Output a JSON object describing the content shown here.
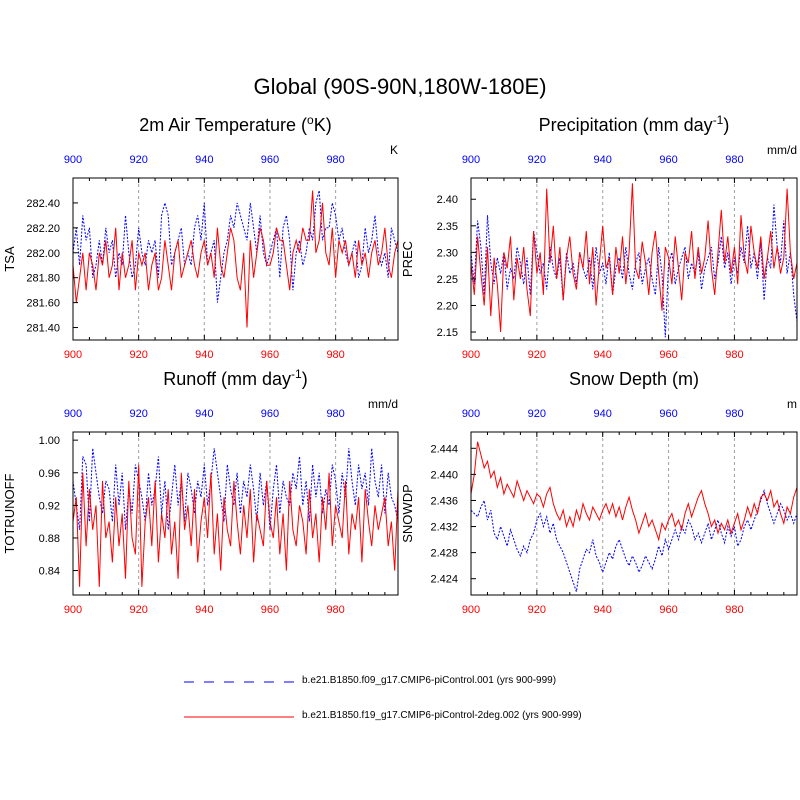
{
  "figure_title": "Global (90S-90N,180W-180E)",
  "colors": {
    "case1": "#0000ff",
    "case2": "#ff0000",
    "grid": "#a0a0a0",
    "axis": "#000000"
  },
  "legend": {
    "case1": "b.e21.B1850.f09_g17.CMIP6-piControl.001 (yrs 900-999)",
    "case2": "b.e21.B1850.f19_g17.CMIP6-piControl-2deg.002 (yrs 900-999)"
  },
  "chart_data": [
    {
      "type": "line",
      "title": "2m Air Temperature (",
      "title_sup": "o",
      "title_tail": "K)",
      "units": "K",
      "ylabel": "TSA",
      "xlim": [
        900,
        999
      ],
      "ylim": [
        281.3,
        282.6
      ],
      "xticks": [
        900,
        920,
        940,
        960,
        980
      ],
      "xtick_labels": [
        "900",
        "920",
        "940",
        "960",
        "980"
      ],
      "yticks": [
        281.4,
        281.6,
        281.8,
        282.0,
        282.2,
        282.4
      ],
      "ytick_labels": [
        "281.40",
        "281.60",
        "281.80",
        "282.00",
        "282.20",
        "282.40"
      ],
      "series": [
        {
          "name": "case1",
          "x_start": 900,
          "values": [
            282.0,
            282.2,
            281.9,
            282.3,
            282.1,
            282.2,
            281.8,
            281.9,
            282.1,
            281.9,
            282.2,
            282.0,
            282.1,
            281.8,
            282.0,
            281.9,
            282.3,
            282.0,
            281.8,
            281.9,
            282.2,
            282.0,
            281.9,
            282.1,
            282.0,
            282.1,
            281.8,
            282.3,
            282.4,
            282.3,
            281.9,
            282.0,
            282.1,
            282.2,
            281.9,
            282.0,
            281.9,
            282.2,
            282.3,
            282.1,
            282.4,
            281.9,
            282.0,
            282.1,
            281.6,
            281.8,
            282.0,
            282.1,
            282.3,
            282.2,
            282.4,
            282.3,
            282.2,
            282.1,
            282.4,
            282.2,
            282.0,
            282.3,
            282.0,
            281.9,
            282.0,
            282.1,
            282.2,
            281.8,
            282.2,
            282.3,
            282.1,
            281.7,
            282.0,
            282.1,
            281.9,
            282.0,
            282.2,
            282.1,
            282.4,
            282.5,
            282.1,
            282.2,
            282.2,
            282.4,
            282.3,
            282.1,
            282.2,
            282.0,
            281.9,
            282.0,
            282.1,
            281.8,
            281.9,
            282.2,
            282.0,
            282.1,
            282.3,
            282.0,
            281.9,
            282.0,
            281.8,
            282.2,
            282.1,
            282.0
          ]
        },
        {
          "name": "case2",
          "x_start": 900,
          "values": [
            281.9,
            281.6,
            281.8,
            282.0,
            281.7,
            282.0,
            281.9,
            281.7,
            282.0,
            281.9,
            282.1,
            281.8,
            281.9,
            282.2,
            281.7,
            282.0,
            281.8,
            281.9,
            282.1,
            281.7,
            282.0,
            281.9,
            282.0,
            281.7,
            281.9,
            282.0,
            281.7,
            281.8,
            282.1,
            281.9,
            281.7,
            282.0,
            282.1,
            281.8,
            281.9,
            282.0,
            282.1,
            281.9,
            281.8,
            282.0,
            282.1,
            281.9,
            282.0,
            281.8,
            282.2,
            281.9,
            281.8,
            282.0,
            282.2,
            282.1,
            281.8,
            281.7,
            282.0,
            281.4,
            282.1,
            281.8,
            282.0,
            282.2,
            282.1,
            281.9,
            281.9,
            282.0,
            282.2,
            282.1,
            282.1,
            281.9,
            281.7,
            282.0,
            282.1,
            282.0,
            282.2,
            282.1,
            282.1,
            282.5,
            282.0,
            282.1,
            282.4,
            282.0,
            281.9,
            282.2,
            281.8,
            282.1,
            282.0,
            282.1,
            281.9,
            282.0,
            281.8,
            282.1,
            281.9,
            282.0,
            281.8,
            282.0,
            282.1,
            281.9,
            282.0,
            282.2,
            281.9,
            281.8,
            282.0,
            282.1
          ]
        }
      ]
    },
    {
      "type": "line",
      "title": "Precipitation (mm day",
      "title_sup": "-1",
      "title_tail": ")",
      "units": "mm/d",
      "ylabel": "PREC",
      "xlim": [
        900,
        999
      ],
      "ylim": [
        2.135,
        2.44
      ],
      "xticks": [
        900,
        920,
        940,
        960,
        980
      ],
      "xtick_labels": [
        "900",
        "920",
        "940",
        "960",
        "980"
      ],
      "yticks": [
        2.15,
        2.2,
        2.25,
        2.3,
        2.35,
        2.4
      ],
      "ytick_labels": [
        "2.15",
        "2.20",
        "2.25",
        "2.30",
        "2.35",
        "2.40"
      ],
      "series": [
        {
          "name": "case1",
          "x_start": 900,
          "values": [
            2.3,
            2.24,
            2.36,
            2.31,
            2.22,
            2.37,
            2.28,
            2.24,
            2.29,
            2.26,
            2.3,
            2.23,
            2.27,
            2.25,
            2.31,
            2.28,
            2.24,
            2.29,
            2.22,
            2.34,
            2.3,
            2.26,
            2.28,
            2.23,
            2.31,
            2.27,
            2.25,
            2.29,
            2.21,
            2.3,
            2.26,
            2.28,
            2.24,
            2.3,
            2.27,
            2.25,
            2.29,
            2.23,
            2.31,
            2.26,
            2.28,
            2.24,
            2.3,
            2.22,
            2.27,
            2.29,
            2.25,
            2.31,
            2.26,
            2.23,
            2.28,
            2.3,
            2.24,
            2.27,
            2.29,
            2.25,
            2.22,
            2.31,
            2.26,
            2.14,
            2.28,
            2.3,
            2.24,
            2.27,
            2.29,
            2.31,
            2.25,
            2.28,
            2.26,
            2.3,
            2.23,
            2.27,
            2.29,
            2.31,
            2.25,
            2.28,
            2.33,
            2.27,
            2.3,
            2.24,
            2.29,
            2.26,
            2.31,
            2.28,
            2.35,
            2.27,
            2.3,
            2.25,
            2.32,
            2.21,
            2.29,
            2.27,
            2.39,
            2.31,
            2.28,
            2.36,
            2.26,
            2.3,
            2.22,
            2.17
          ]
        },
        {
          "name": "case2",
          "x_start": 900,
          "values": [
            2.28,
            2.22,
            2.33,
            2.26,
            2.2,
            2.31,
            2.18,
            2.29,
            2.24,
            2.15,
            2.3,
            2.27,
            2.33,
            2.21,
            2.29,
            2.25,
            2.31,
            2.23,
            2.18,
            2.34,
            2.26,
            2.3,
            2.22,
            2.42,
            2.28,
            2.35,
            2.25,
            2.31,
            2.21,
            2.29,
            2.33,
            2.26,
            2.23,
            2.3,
            2.27,
            2.34,
            2.24,
            2.31,
            2.2,
            2.28,
            2.35,
            2.27,
            2.29,
            2.22,
            2.31,
            2.26,
            2.33,
            2.24,
            2.3,
            2.43,
            2.27,
            2.25,
            2.32,
            2.28,
            2.22,
            2.3,
            2.34,
            2.26,
            2.19,
            2.31,
            2.29,
            2.24,
            2.33,
            2.27,
            2.21,
            2.3,
            2.28,
            2.34,
            2.25,
            2.31,
            2.26,
            2.29,
            2.36,
            2.27,
            2.22,
            2.3,
            2.38,
            2.28,
            2.33,
            2.26,
            2.31,
            2.24,
            2.37,
            2.29,
            2.26,
            2.35,
            2.3,
            2.27,
            2.33,
            2.25,
            2.29,
            2.34,
            2.27,
            2.31,
            2.26,
            2.29,
            2.42,
            2.3,
            2.25,
            2.28
          ]
        }
      ]
    },
    {
      "type": "line",
      "title": "Runoff (mm day",
      "title_sup": "-1",
      "title_tail": ")",
      "units": "mm/d",
      "ylabel": "TOTRUNOFF",
      "xlim": [
        900,
        999
      ],
      "ylim": [
        0.81,
        1.01
      ],
      "xticks": [
        900,
        920,
        940,
        960,
        980
      ],
      "xtick_labels": [
        "900",
        "920",
        "940",
        "960",
        "980"
      ],
      "yticks": [
        0.84,
        0.88,
        0.92,
        0.96,
        1.0
      ],
      "ytick_labels": [
        "0.84",
        "0.88",
        "0.92",
        "0.96",
        "1.00"
      ],
      "series": [
        {
          "name": "case1",
          "x_start": 900,
          "values": [
            0.95,
            0.92,
            0.89,
            0.98,
            0.97,
            0.9,
            0.99,
            0.96,
            0.93,
            0.91,
            0.95,
            0.94,
            0.9,
            0.97,
            0.92,
            0.96,
            0.89,
            0.94,
            0.91,
            0.97,
            0.95,
            0.93,
            0.9,
            0.96,
            0.92,
            0.94,
            0.98,
            0.91,
            0.95,
            0.89,
            0.93,
            0.97,
            0.92,
            0.95,
            0.9,
            0.96,
            0.94,
            0.91,
            0.95,
            0.93,
            0.97,
            0.92,
            0.95,
            0.99,
            0.96,
            0.93,
            0.9,
            0.97,
            0.94,
            0.92,
            0.96,
            0.91,
            0.95,
            0.93,
            0.97,
            0.94,
            0.9,
            0.96,
            0.92,
            0.95,
            0.89,
            0.94,
            0.97,
            0.91,
            0.95,
            0.93,
            0.92,
            0.96,
            0.94,
            0.98,
            0.92,
            0.95,
            0.9,
            0.97,
            0.93,
            0.96,
            0.91,
            0.94,
            0.92,
            0.97,
            0.95,
            0.91,
            0.96,
            0.93,
            0.99,
            0.95,
            0.92,
            0.97,
            0.94,
            0.96,
            0.92,
            0.99,
            0.95,
            0.93,
            0.97,
            0.91,
            0.96,
            0.93,
            0.92,
            0.9
          ]
        },
        {
          "name": "case2",
          "x_start": 900,
          "values": [
            0.9,
            0.93,
            0.82,
            0.96,
            0.87,
            0.94,
            0.89,
            0.92,
            0.82,
            0.95,
            0.88,
            0.9,
            0.85,
            0.93,
            0.87,
            0.91,
            0.83,
            0.95,
            0.88,
            0.86,
            0.97,
            0.82,
            0.9,
            0.93,
            0.87,
            0.95,
            0.85,
            0.91,
            0.88,
            0.94,
            0.86,
            0.9,
            0.83,
            0.96,
            0.89,
            0.92,
            0.87,
            0.94,
            0.85,
            0.9,
            0.93,
            0.88,
            0.96,
            0.86,
            0.91,
            0.84,
            0.93,
            0.89,
            0.87,
            0.95,
            0.9,
            0.86,
            0.92,
            0.88,
            0.94,
            0.85,
            0.91,
            0.89,
            0.87,
            0.95,
            0.9,
            0.88,
            0.93,
            0.86,
            0.91,
            0.84,
            0.95,
            0.89,
            0.87,
            0.92,
            0.9,
            0.86,
            0.94,
            0.88,
            0.91,
            0.85,
            0.93,
            0.89,
            0.96,
            0.87,
            0.92,
            0.9,
            0.88,
            0.95,
            0.86,
            0.91,
            0.89,
            0.93,
            0.85,
            0.94,
            0.9,
            0.87,
            0.92,
            0.89,
            0.91,
            0.93,
            0.87,
            0.9,
            0.84,
            0.94
          ]
        }
      ]
    },
    {
      "type": "line",
      "title": "Snow Depth (m)",
      "title_sup": "",
      "title_tail": "",
      "units": "m",
      "ylabel": "SNOWDP",
      "xlim": [
        900,
        999
      ],
      "ylim": [
        2.4215,
        2.4465
      ],
      "xticks": [
        900,
        920,
        940,
        960,
        980
      ],
      "xtick_labels": [
        "900",
        "920",
        "940",
        "960",
        "980"
      ],
      "yticks": [
        2.424,
        2.428,
        2.432,
        2.436,
        2.44,
        2.444
      ],
      "ytick_labels": [
        "2.424",
        "2.428",
        "2.432",
        "2.436",
        "2.440",
        "2.444"
      ],
      "series": [
        {
          "name": "case1",
          "x_start": 900,
          "values": [
            2.4345,
            2.434,
            2.4335,
            2.435,
            2.436,
            2.433,
            2.4345,
            2.431,
            2.43,
            2.432,
            2.4305,
            2.429,
            2.4315,
            2.43,
            2.4285,
            2.4275,
            2.429,
            2.428,
            2.43,
            2.431,
            2.433,
            2.434,
            2.432,
            2.4335,
            2.431,
            2.4325,
            2.43,
            2.429,
            2.428,
            2.4265,
            2.425,
            2.4235,
            2.422,
            2.4255,
            2.427,
            2.4285,
            2.428,
            2.43,
            2.4275,
            2.4265,
            2.425,
            2.4265,
            2.428,
            2.427,
            2.429,
            2.43,
            2.4285,
            2.427,
            2.426,
            2.4275,
            2.4265,
            2.425,
            2.426,
            2.4275,
            2.4265,
            2.4255,
            2.427,
            2.429,
            2.4275,
            2.43,
            2.4285,
            2.43,
            2.4315,
            2.43,
            2.432,
            2.431,
            2.433,
            2.432,
            2.43,
            2.431,
            2.4295,
            2.431,
            2.4325,
            2.43,
            2.4315,
            2.433,
            2.431,
            2.4295,
            2.432,
            2.4305,
            2.432,
            2.429,
            2.43,
            2.432,
            2.433,
            2.4315,
            2.433,
            2.4345,
            2.436,
            2.4375,
            2.4355,
            2.434,
            2.4325,
            2.434,
            2.4355,
            2.4345,
            2.433,
            2.434,
            2.4325,
            2.434
          ]
        },
        {
          "name": "case2",
          "x_start": 900,
          "values": [
            2.437,
            2.44,
            2.445,
            2.443,
            2.441,
            2.442,
            2.4395,
            2.4405,
            2.438,
            2.4395,
            2.437,
            2.4385,
            2.4375,
            2.4365,
            2.439,
            2.4375,
            2.436,
            2.4375,
            2.4365,
            2.4355,
            2.437,
            2.4365,
            2.435,
            2.437,
            2.438,
            2.4355,
            2.434,
            2.433,
            2.4345,
            2.432,
            2.4335,
            2.432,
            2.4345,
            2.433,
            2.4355,
            2.434,
            2.433,
            2.435,
            2.434,
            2.433,
            2.4345,
            2.4355,
            2.434,
            2.4355,
            2.4335,
            2.435,
            2.433,
            2.435,
            2.4365,
            2.4345,
            2.433,
            2.431,
            2.4325,
            2.434,
            2.432,
            2.433,
            2.4315,
            2.43,
            2.4325,
            2.4315,
            2.433,
            2.434,
            2.432,
            2.433,
            2.4315,
            2.434,
            2.4355,
            2.4335,
            2.435,
            2.4365,
            2.4375,
            2.4355,
            2.434,
            2.432,
            2.433,
            2.431,
            2.4325,
            2.4315,
            2.433,
            2.431,
            2.4325,
            2.434,
            2.4315,
            2.433,
            2.435,
            2.4335,
            2.4355,
            2.434,
            2.4365,
            2.437,
            2.436,
            2.4375,
            2.435,
            2.436,
            2.434,
            2.4325,
            2.435,
            2.434,
            2.4365,
            2.438
          ]
        }
      ]
    }
  ]
}
